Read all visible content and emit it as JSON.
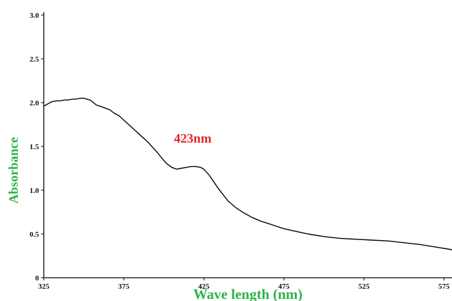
{
  "chart_data": {
    "type": "line",
    "title": "",
    "xlabel": "Wave length (nm)",
    "ylabel": "Absorbance",
    "xlim": [
      325,
      580
    ],
    "ylim": [
      0,
      3.0
    ],
    "x_ticks": [
      "325",
      "375",
      "425",
      "475",
      "525",
      "575"
    ],
    "y_ticks": [
      "0",
      "0.5",
      "1.0",
      "1.5",
      "2.0",
      "2.5",
      "3.0"
    ],
    "grid": false,
    "legend": "none",
    "annotation": {
      "text": "423nm",
      "x": 420,
      "y": 1.27
    },
    "series": [
      {
        "x": [
          325,
          328,
          330,
          333,
          335,
          338,
          340,
          343,
          345,
          348,
          350,
          352,
          354,
          356,
          358,
          360,
          363,
          366,
          369,
          372,
          375,
          378,
          381,
          384,
          387,
          390,
          393,
          396,
          399,
          402,
          405,
          408,
          411,
          414,
          417,
          420,
          423,
          425,
          428,
          431,
          434,
          437,
          440,
          445,
          450,
          455,
          460,
          465,
          470,
          475,
          480,
          490,
          500,
          510,
          520,
          530,
          540,
          550,
          560,
          570,
          580
        ],
        "y": [
          1.96,
          1.99,
          2.01,
          2.02,
          2.02,
          2.03,
          2.03,
          2.04,
          2.04,
          2.05,
          2.05,
          2.04,
          2.03,
          2.0,
          1.97,
          1.96,
          1.94,
          1.92,
          1.88,
          1.85,
          1.8,
          1.75,
          1.7,
          1.65,
          1.6,
          1.55,
          1.49,
          1.43,
          1.36,
          1.3,
          1.26,
          1.24,
          1.25,
          1.26,
          1.27,
          1.27,
          1.26,
          1.24,
          1.18,
          1.1,
          1.02,
          0.95,
          0.88,
          0.8,
          0.74,
          0.69,
          0.65,
          0.62,
          0.59,
          0.56,
          0.54,
          0.5,
          0.47,
          0.45,
          0.44,
          0.43,
          0.42,
          0.4,
          0.38,
          0.35,
          0.32
        ]
      }
    ],
    "colors": {
      "line": "#000000",
      "ylabel": "#2db34a",
      "xlabel": "#2db34a",
      "annotation": "#e3242b",
      "axis": "#000000"
    }
  }
}
